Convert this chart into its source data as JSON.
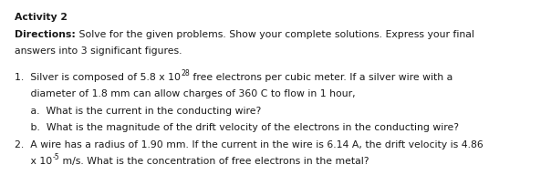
{
  "title": "Activity 2",
  "directions_bold": "Directions:",
  "directions_rest": " Solve for the given problems. Show your complete solutions. Express your final",
  "directions_line2": "answers into 3 significant figures.",
  "item1_pre": "1.  Silver is composed of 5.8 x 10",
  "item1_sup": "28",
  "item1_post": " free electrons per cubic meter. If a silver wire with a",
  "item1_line2": "     diameter of 1.8 mm can allow charges of 360 C to flow in 1 hour,",
  "item1_a": "     a.  What is the current in the conducting wire?",
  "item1_b": "     b.  What is the magnitude of the drift velocity of the electrons in the conducting wire?",
  "item2_line1": "2.  A wire has a radius of 1.90 mm. If the current in the wire is 6.14 A, the drift velocity is 4.86",
  "item2_pre": "     x 10",
  "item2_sup": "-5",
  "item2_post": " m/s. What is the concentration of free electrons in the metal?",
  "font_size": 7.8,
  "background_color": "#ffffff",
  "text_color": "#1a1a1a"
}
